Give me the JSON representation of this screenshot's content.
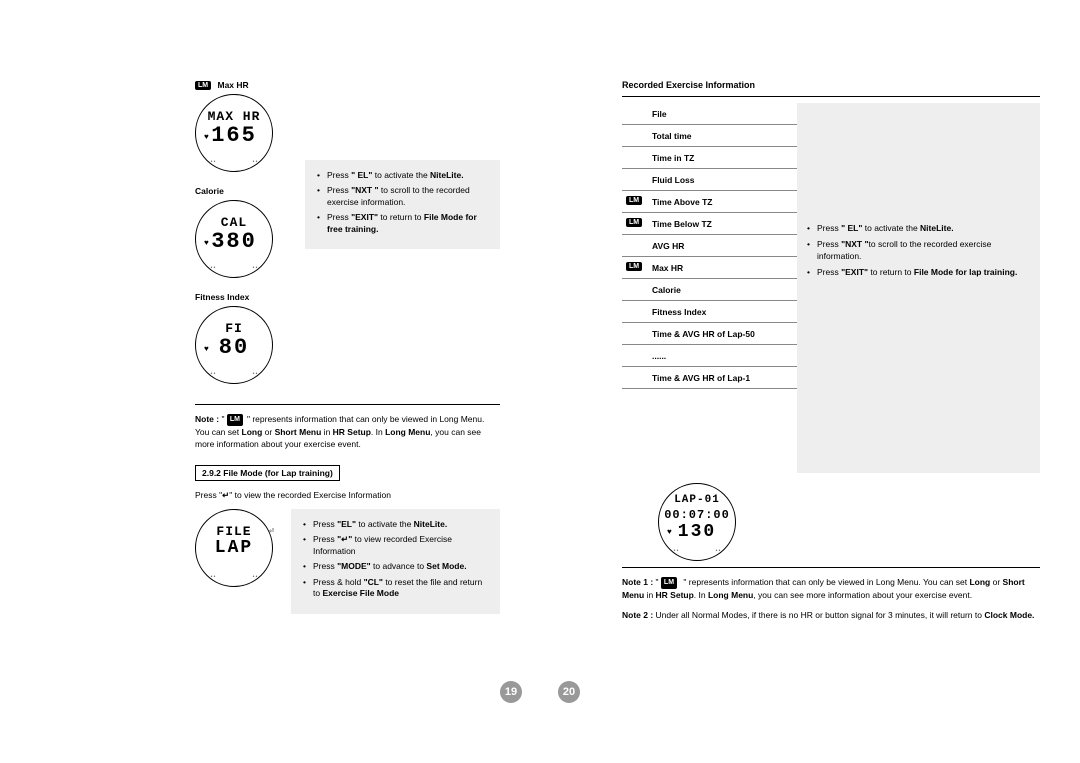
{
  "leftPage": {
    "watches": [
      {
        "badge": true,
        "label": "Max HR",
        "line1": "MAX HR",
        "line2": "165"
      },
      {
        "badge": false,
        "label": "Calorie",
        "line1": "CAL",
        "line2": "380"
      },
      {
        "badge": false,
        "label": "Fitness Index",
        "line1": "FI",
        "line2": "80"
      }
    ],
    "box1": {
      "items": [
        {
          "pre": "Press ",
          "q": "\" EL\"",
          "post": " to activate the ",
          "b": "NiteLite."
        },
        {
          "pre": "Press ",
          "q": "\"NXT \"",
          "post": " to scroll to the recorded exercise information."
        },
        {
          "pre": "Press ",
          "q": "\"EXIT\"",
          "post": " to return to ",
          "b": "File Mode for free training."
        }
      ]
    },
    "noteLabel": "Note :",
    "noteText": "represents information that can only be viewed in Long Menu. You can set",
    "noteB1": "Long",
    "noteMid1": " or ",
    "noteB2": "Short Menu",
    "noteMid2": " in ",
    "noteB3": "HR Setup",
    "noteMid3": ". In ",
    "noteB4": "Long Menu",
    "noteEnd": ", you can see more information about your exercise event.",
    "sectionHeader": "2.9.2 File Mode (for Lap training)",
    "pressLine": {
      "pre": "Press \"",
      "icon": "↵",
      "post": "\" to view the recorded Exercise Information"
    },
    "fileLapWatch": {
      "line1": "FILE",
      "line2": "LAP"
    },
    "box2": {
      "items": [
        {
          "pre": "Press ",
          "q": "\"EL\"",
          "post": " to activate the ",
          "b": "NiteLite."
        },
        {
          "pre": "Press ",
          "q": "\"↵\"",
          "post": " to view recorded Exercise Information"
        },
        {
          "pre": "Press ",
          "q": "\"MODE\"",
          "post": " to advance to ",
          "b": "Set Mode."
        },
        {
          "pre": "Press & hold ",
          "q": "\"CL\"",
          "post": " to reset the file and return to ",
          "b": "Exercise File Mode"
        }
      ]
    },
    "pageNum": "19"
  },
  "rightPage": {
    "title": "Recorded Exercise Information",
    "items": [
      {
        "lm": false,
        "label": "File"
      },
      {
        "lm": false,
        "label": "Total time"
      },
      {
        "lm": false,
        "label": "Time in TZ"
      },
      {
        "lm": false,
        "label": "Fluid Loss"
      },
      {
        "lm": true,
        "label": "Time Above TZ"
      },
      {
        "lm": true,
        "label": "Time Below TZ"
      },
      {
        "lm": false,
        "label": "AVG HR"
      },
      {
        "lm": true,
        "label": "Max HR"
      },
      {
        "lm": false,
        "label": "Calorie"
      },
      {
        "lm": false,
        "label": "Fitness Index"
      },
      {
        "lm": false,
        "label": "Time & AVG HR of Lap-50"
      },
      {
        "lm": false,
        "label": "......"
      },
      {
        "lm": false,
        "label": "Time & AVG HR of Lap-1"
      }
    ],
    "sideBox": {
      "items": [
        {
          "pre": "Press ",
          "q": "\" EL\"",
          "post": " to activate the ",
          "b": "NiteLite."
        },
        {
          "pre": "Press ",
          "q": "\"NXT \"",
          "post": "to scroll to the recorded exercise information."
        },
        {
          "pre": "Press ",
          "q": "\"EXIT\"",
          "post": " to return to ",
          "b": "File Mode for lap training."
        }
      ]
    },
    "lapWatch": {
      "line1": "LAP-01",
      "line2": "00:07:00",
      "line3": "130"
    },
    "note1Label": "Note 1 :",
    "note1Text": "represents information that can only be viewed in Long Menu. You can set",
    "n1b1": "Long",
    "n1m1": " or ",
    "n1b2": "Short Menu",
    "n1m2": " in ",
    "n1b3": "HR Setup",
    "n1m3": ". In ",
    "n1b4": "Long Menu",
    "n1end": ", you can see more information about your exercise event.",
    "note2Label": "Note 2 :",
    "note2Text": "Under all Normal Modes, if there is no HR or button signal for 3 minutes, it will return to ",
    "note2B": "Clock Mode.",
    "pageNum": "20"
  },
  "lmBadge": "LM"
}
